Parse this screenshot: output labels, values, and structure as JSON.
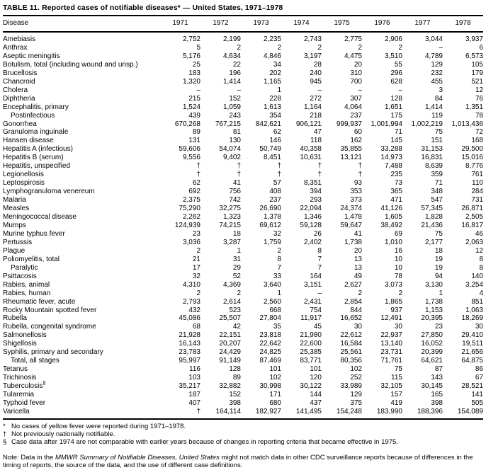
{
  "page": {
    "title": "TABLE 11.  Reported cases of notifiable diseases* — United States, 1971–1978"
  },
  "table": {
    "columns": [
      "Disease",
      "1971",
      "1972",
      "1973",
      "1974",
      "1975",
      "1976",
      "1977",
      "1978"
    ],
    "rows": [
      {
        "disease": "Amebiasis",
        "values": [
          "2,752",
          "2,199",
          "2,235",
          "2,743",
          "2,775",
          "2,906",
          "3,044",
          "3,937"
        ]
      },
      {
        "disease": "Anthrax",
        "values": [
          "5",
          "2",
          "2",
          "2",
          "2",
          "2",
          "–",
          "6"
        ]
      },
      {
        "disease": "Aseptic meningitis",
        "values": [
          "5,176",
          "4,634",
          "4,846",
          "3,197",
          "4,475",
          "3,510",
          "4,789",
          "6,573"
        ]
      },
      {
        "disease": "Botulism, total (including wound and unsp.)",
        "values": [
          "25",
          "22",
          "34",
          "28",
          "20",
          "55",
          "129",
          "105"
        ]
      },
      {
        "disease": "Brucellosis",
        "values": [
          "183",
          "196",
          "202",
          "240",
          "310",
          "296",
          "232",
          "179"
        ]
      },
      {
        "disease": "Chancroid",
        "values": [
          "1,320",
          "1,414",
          "1,165",
          "945",
          "700",
          "628",
          "455",
          "521"
        ]
      },
      {
        "disease": "Cholera",
        "values": [
          "–",
          "–",
          "1",
          "–",
          "–",
          "–",
          "3",
          "12"
        ]
      },
      {
        "disease": "Diphtheria",
        "values": [
          "215",
          "152",
          "228",
          "272",
          "307",
          "128",
          "84",
          "76"
        ]
      },
      {
        "disease": "Encephalitis, primary",
        "values": [
          "1,524",
          "1,059",
          "1,613",
          "1,164",
          "4,064",
          "1,651",
          "1,414",
          "1,351"
        ]
      },
      {
        "disease": "Postinfectious",
        "indent": true,
        "values": [
          "439",
          "243",
          "354",
          "218",
          "237",
          "175",
          "119",
          "78"
        ]
      },
      {
        "disease": "Gonorrhea",
        "values": [
          "670,268",
          "767,215",
          "842,621",
          "906,121",
          "999,937",
          "1,001,994",
          "1,002,219",
          "1,013,436"
        ]
      },
      {
        "disease": "Granuloma inguinale",
        "values": [
          "89",
          "81",
          "62",
          "47",
          "60",
          "71",
          "75",
          "72"
        ]
      },
      {
        "disease": "Hansen disease",
        "values": [
          "131",
          "130",
          "146",
          "118",
          "162",
          "145",
          "151",
          "168"
        ]
      },
      {
        "disease": "Hepatitis A (infectious)",
        "values": [
          "59,606",
          "54,074",
          "50,749",
          "40,358",
          "35,855",
          "33,288",
          "31,153",
          "29,500"
        ]
      },
      {
        "disease": "Hepatitis B (serum)",
        "values": [
          "9,556",
          "9,402",
          "8,451",
          "10,631",
          "13,121",
          "14,973",
          "16,831",
          "15,016"
        ]
      },
      {
        "disease": "Hepatitis, unspecified",
        "values": [
          "†",
          "†",
          "†",
          "†",
          "†",
          "7,488",
          "8,639",
          "8,776"
        ]
      },
      {
        "disease": "Legionellosis",
        "values": [
          "†",
          "†",
          "†",
          "†",
          "†",
          "235",
          "359",
          "761"
        ]
      },
      {
        "disease": "Leptospirosis",
        "values": [
          "62",
          "41",
          "57",
          "8,351",
          "93",
          "73",
          "71",
          "110"
        ]
      },
      {
        "disease": "Lymphogranuloma venereum",
        "values": [
          "692",
          "756",
          "408",
          "394",
          "353",
          "365",
          "348",
          "284"
        ]
      },
      {
        "disease": "Malaria",
        "values": [
          "2,375",
          "742",
          "237",
          "293",
          "373",
          "471",
          "547",
          "731"
        ]
      },
      {
        "disease": "Measles",
        "values": [
          "75,290",
          "32,275",
          "26,690",
          "22,094",
          "24,374",
          "41,126",
          "57,345",
          "26,871"
        ]
      },
      {
        "disease": "Meningococcal disease",
        "values": [
          "2,262",
          "1,323",
          "1,378",
          "1,346",
          "1,478",
          "1,605",
          "1,828",
          "2,505"
        ]
      },
      {
        "disease": "Mumps",
        "values": [
          "124,939",
          "74,215",
          "69,612",
          "59,128",
          "59,647",
          "38,492",
          "21,436",
          "16,817"
        ]
      },
      {
        "disease": "Murine typhus fever",
        "values": [
          "23",
          "18",
          "32",
          "26",
          "41",
          "69",
          "75",
          "46"
        ]
      },
      {
        "disease": "Pertussis",
        "values": [
          "3,036",
          "3,287",
          "1,759",
          "2,402",
          "1,738",
          "1,010",
          "2,177",
          "2,063"
        ]
      },
      {
        "disease": "Plague",
        "values": [
          "2",
          "1",
          "2",
          "8",
          "20",
          "16",
          "18",
          "12"
        ]
      },
      {
        "disease": "Poliomyelitis, total",
        "values": [
          "21",
          "31",
          "8",
          "7",
          "13",
          "10",
          "19",
          "8"
        ]
      },
      {
        "disease": "Paralytic",
        "indent": true,
        "values": [
          "17",
          "29",
          "7",
          "7",
          "13",
          "10",
          "19",
          "8"
        ]
      },
      {
        "disease": "Psittacosis",
        "values": [
          "32",
          "52",
          "33",
          "164",
          "49",
          "78",
          "94",
          "140"
        ]
      },
      {
        "disease": "Rabies, animal",
        "values": [
          "4,310",
          "4,369",
          "3,640",
          "3,151",
          "2,627",
          "3,073",
          "3,130",
          "3,254"
        ]
      },
      {
        "disease": "Rabies, human",
        "values": [
          "2",
          "2",
          "1",
          "–",
          "2",
          "2",
          "1",
          "4"
        ]
      },
      {
        "disease": "Rheumatic fever, acute",
        "values": [
          "2,793",
          "2,614",
          "2,560",
          "2,431",
          "2,854",
          "1,865",
          "1,738",
          "851"
        ]
      },
      {
        "disease": "Rocky Mountain spotted fever",
        "values": [
          "432",
          "523",
          "668",
          "754",
          "844",
          "937",
          "1,153",
          "1,063"
        ]
      },
      {
        "disease": "Rubella",
        "values": [
          "45,086",
          "25,507",
          "27,804",
          "11,917",
          "16,652",
          "12,491",
          "20,395",
          "18,269"
        ]
      },
      {
        "disease": "Rubella, congenital syndrome",
        "values": [
          "68",
          "42",
          "35",
          "45",
          "30",
          "30",
          "23",
          "30"
        ]
      },
      {
        "disease": "Salmonellosis",
        "values": [
          "21,928",
          "22,151",
          "23,818",
          "21,980",
          "22,612",
          "22,937",
          "27,850",
          "29,410"
        ]
      },
      {
        "disease": "Shigellosis",
        "values": [
          "16,143",
          "20,207",
          "22,642",
          "22,600",
          "16,584",
          "13,140",
          "16,052",
          "19,511"
        ]
      },
      {
        "disease": "Syphilis, primary and secondary",
        "values": [
          "23,783",
          "24,429",
          "24,825",
          "25,385",
          "25,561",
          "23,731",
          "20,399",
          "21,656"
        ]
      },
      {
        "disease": "Total, all stages",
        "indent": true,
        "values": [
          "95,997",
          "91,149",
          "87,469",
          "83,771",
          "80,356",
          "71,761",
          "64,621",
          "64,875"
        ]
      },
      {
        "disease": "Tetanus",
        "values": [
          "116",
          "128",
          "101",
          "101",
          "102",
          "75",
          "87",
          "86"
        ]
      },
      {
        "disease": "Trichinosis",
        "values": [
          "103",
          "89",
          "102",
          "120",
          "252",
          "115",
          "143",
          "67"
        ]
      },
      {
        "disease": "Tuberculosis",
        "sup": "§",
        "values": [
          "35,217",
          "32,882",
          "30,998",
          "30,122",
          "33,989",
          "32,105",
          "30,145",
          "28,521"
        ]
      },
      {
        "disease": "Tularemia",
        "values": [
          "187",
          "152",
          "171",
          "144",
          "129",
          "157",
          "165",
          "141"
        ]
      },
      {
        "disease": "Typhoid fever",
        "values": [
          "407",
          "398",
          "680",
          "437",
          "375",
          "419",
          "398",
          "505"
        ]
      },
      {
        "disease": "Varicella",
        "values": [
          "†",
          "164,114",
          "182,927",
          "141,495",
          "154,248",
          "183,990",
          "188,396",
          "154,089"
        ]
      }
    ]
  },
  "footnotes": [
    {
      "marker": "*",
      "text": "No cases of yellow fever were reported during 1971–1978."
    },
    {
      "marker": "†",
      "text": "Not previously nationally notifiable."
    },
    {
      "marker": "§",
      "text": "Case data after 1974 are not comparable with earlier years because of changes in reporting criteria that became effective in 1975."
    }
  ],
  "note": {
    "prefix": "Note: Data in the ",
    "italic": "MMWR Summary of Notifiable Diseases, United States",
    "suffix": " might not match data in other CDC surveillance reports because of differences in the timing of reports, the source of the data, and the use of different case definitions."
  }
}
